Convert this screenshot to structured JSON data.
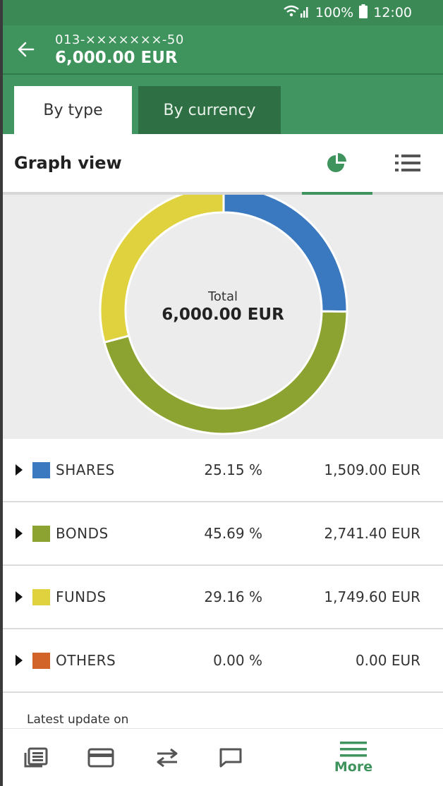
{
  "status": {
    "battery": "100%",
    "time": "12:00"
  },
  "account": {
    "number": "013-×××××××-50",
    "balance": "6,000.00 EUR"
  },
  "tabs": [
    {
      "label": "By type",
      "active": true
    },
    {
      "label": "By currency",
      "active": false
    }
  ],
  "graph_view": {
    "title": "Graph view",
    "view_icons": [
      "pie-chart-icon",
      "list-icon"
    ],
    "selected": "pie-chart-icon"
  },
  "chart_data": {
    "type": "pie",
    "center_label": "Total",
    "center_value": "6,000.00 EUR",
    "categories": [
      "SHARES",
      "BONDS",
      "FUNDS",
      "OTHERS"
    ],
    "values": [
      25.15,
      45.69,
      29.16,
      0.0
    ],
    "colors": [
      "#3a78bf",
      "#8ca332",
      "#e0d23e",
      "#d2642a"
    ]
  },
  "breakdown": [
    {
      "name": "SHARES",
      "percent": "25.15 %",
      "amount": "1,509.00 EUR",
      "color": "#3a78bf"
    },
    {
      "name": "BONDS",
      "percent": "45.69 %",
      "amount": "2,741.40 EUR",
      "color": "#8ca332"
    },
    {
      "name": "FUNDS",
      "percent": "29.16 %",
      "amount": "1,749.60 EUR",
      "color": "#e0d23e"
    },
    {
      "name": "OTHERS",
      "percent": "0.00 %",
      "amount": "0.00 EUR",
      "color": "#d2642a"
    }
  ],
  "footer": {
    "latest_update": "Latest update on"
  },
  "bottom_nav": {
    "items": [
      "news-icon",
      "card-icon",
      "transfer-icon",
      "message-icon",
      "menu-icon"
    ],
    "more_label": "More"
  },
  "colors": {
    "primary": "#3f935c",
    "tab_inactive": "#2f6f44"
  }
}
